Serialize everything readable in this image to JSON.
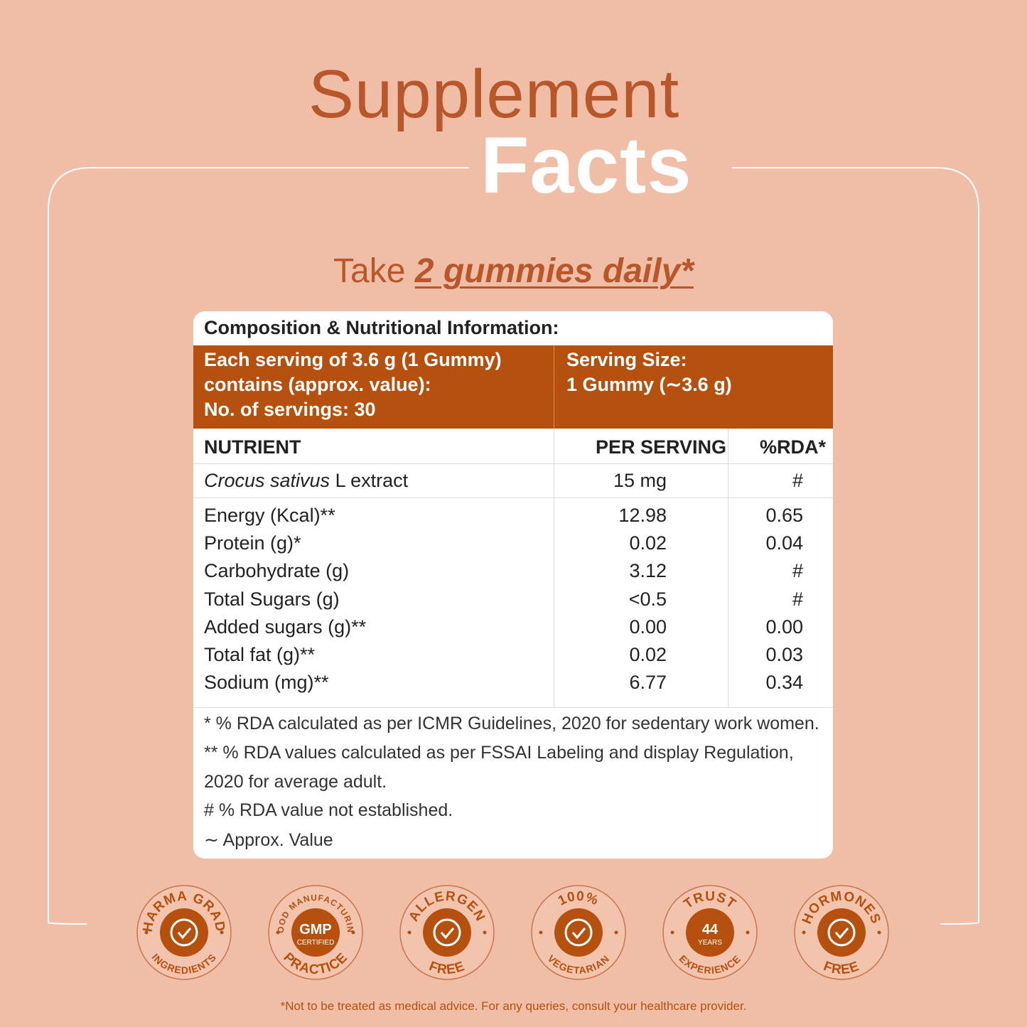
{
  "header": {
    "title_line1": "Supplement",
    "title_line2": "Facts",
    "dosage_prefix": "Take",
    "dosage_emphasis": "2 gummies daily*"
  },
  "table": {
    "title": "Composition & Nutritional Information:",
    "serving_info": [
      "Each serving of 3.6 g (1 Gummy)",
      "contains (approx. value):",
      "No. of servings: 30"
    ],
    "serving_size": [
      "Serving Size:",
      "1 Gummy (∼3.6 g)"
    ],
    "columns": [
      "NUTRIENT",
      "PER SERVING",
      "%RDA*"
    ],
    "extract_row": {
      "name_italic": "Crocus sativus",
      "name_rest": "L extract",
      "per_serving": "15 mg",
      "rda": "#"
    },
    "rows": [
      [
        "Energy (Kcal)**",
        "12.98",
        "0.65"
      ],
      [
        "Protein (g)*",
        "0.02",
        "0.04"
      ],
      [
        "Carbohydrate (g)",
        "3.12",
        "#"
      ],
      [
        "Total Sugars (g)",
        "<0.5",
        "#"
      ],
      [
        "Added sugars (g)**",
        "0.00",
        "0.00"
      ],
      [
        "Total fat (g)**",
        "0.02",
        "0.03"
      ],
      [
        "Sodium (mg)**",
        "6.77",
        "0.34"
      ]
    ],
    "footnotes": [
      "* % RDA calculated as per ICMR Guidelines, 2020 for sedentary work women.",
      "** % RDA values calculated as per FSSAI Labeling and display Regulation,",
      "2020 for average adult.",
      "# % RDA value not established.",
      "∼ Approx. Value"
    ]
  },
  "badges": [
    {
      "top": "PHARMA GRADE",
      "bottom": "INGREDIENTS"
    },
    {
      "top": "GOOD MANUFACTURING",
      "bottom": "PRACTICE",
      "center": [
        "GMP",
        "CERTIFIED"
      ]
    },
    {
      "top": "ALLERGEN",
      "bottom": "FREE"
    },
    {
      "top": "100%",
      "bottom": "VEGETARIAN"
    },
    {
      "top": "TRUST",
      "bottom": "EXPERIENCE",
      "center": [
        "44",
        "YEARS"
      ]
    },
    {
      "top": "HORMONES",
      "bottom": "FREE"
    }
  ],
  "disclaimer": "*Not to be treated as medical advice. For any queries, consult your healthcare provider."
}
